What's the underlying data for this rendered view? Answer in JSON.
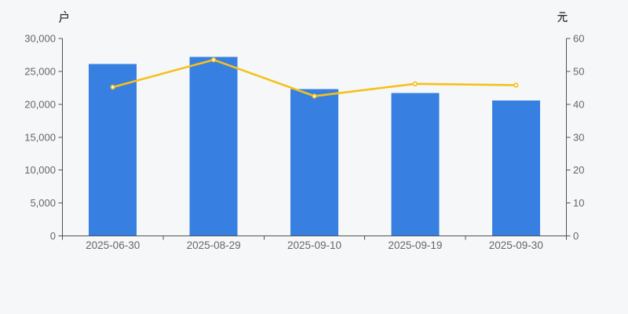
{
  "panel": {
    "background": "#f6f7f8"
  },
  "colors": {
    "axis_line": "#505050",
    "tick_label": "#666666",
    "unit_label": "#333333",
    "bar": "#3780E2",
    "line": "#F5C11A",
    "point_fill": "#ffffff"
  },
  "chart_data": {
    "type": "bar",
    "subtype": "bar-line-combo",
    "title": "",
    "categories": [
      "2025-06-30",
      "2025-08-29",
      "2025-09-10",
      "2025-09-19",
      "2025-09-30"
    ],
    "series": [
      {
        "name": "households-bars",
        "type": "bar",
        "axis": "left",
        "unit": "户",
        "color": "#3780E2",
        "values": [
          26100,
          27200,
          22300,
          21700,
          20600
        ]
      },
      {
        "name": "value-line",
        "type": "line",
        "axis": "right",
        "unit": "元",
        "color": "#F5C11A",
        "point_fill": "#ffffff",
        "values": [
          45.2,
          53.5,
          42.5,
          46.2,
          45.8
        ]
      }
    ],
    "left_axis": {
      "unit_label": "户",
      "min": 0,
      "max": 30000,
      "tick_step": 5000,
      "tick_labels": [
        "0",
        "5,000",
        "10,000",
        "15,000",
        "20,000",
        "25,000",
        "30,000"
      ]
    },
    "right_axis": {
      "unit_label": "元",
      "min": 0,
      "max": 60,
      "tick_step": 10,
      "tick_labels": [
        "0",
        "10",
        "20",
        "30",
        "40",
        "50",
        "60"
      ]
    },
    "grid": false,
    "legend": false
  }
}
